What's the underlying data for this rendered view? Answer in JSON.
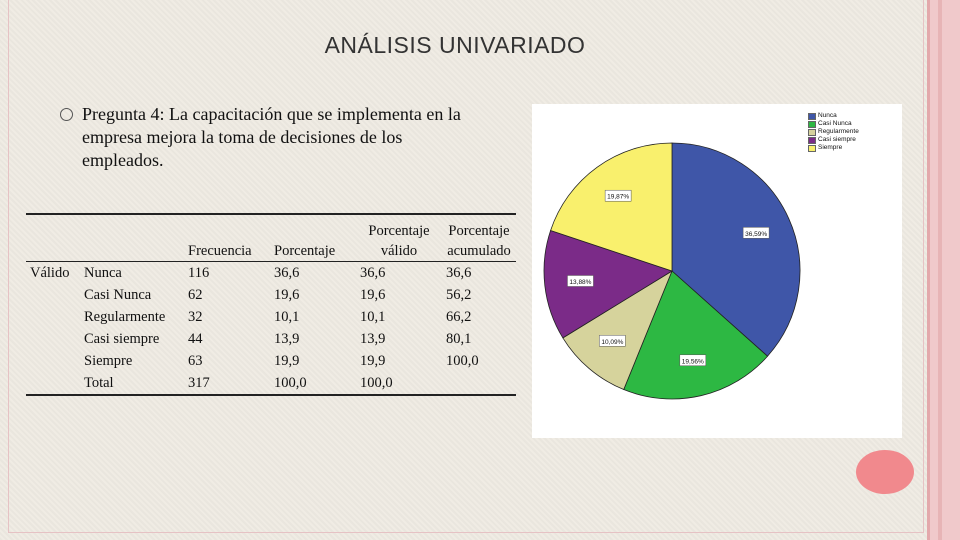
{
  "slide": {
    "title": "ANÁLISIS UNIVARIADO",
    "question": "Pregunta 4: La capacitación que se implementa en la empresa mejora la toma de decisiones de los empleados."
  },
  "table": {
    "headers": [
      "",
      "",
      "Frecuencia",
      "Porcentaje",
      "Porcentaje válido",
      "Porcentaje acumulado"
    ],
    "group_label": "Válido",
    "rows": [
      {
        "label": "Nunca",
        "frecuencia": "116",
        "porcentaje": "36,6",
        "valido": "36,6",
        "acumulado": "36,6"
      },
      {
        "label": "Casi Nunca",
        "frecuencia": "62",
        "porcentaje": "19,6",
        "valido": "19,6",
        "acumulado": "56,2"
      },
      {
        "label": "Regularmente",
        "frecuencia": "32",
        "porcentaje": "10,1",
        "valido": "10,1",
        "acumulado": "66,2"
      },
      {
        "label": "Casi siempre",
        "frecuencia": "44",
        "porcentaje": "13,9",
        "valido": "13,9",
        "acumulado": "80,1"
      },
      {
        "label": "Siempre",
        "frecuencia": "63",
        "porcentaje": "19,9",
        "valido": "19,9",
        "acumulado": "100,0"
      },
      {
        "label": "Total",
        "frecuencia": "317",
        "porcentaje": "100,0",
        "valido": "100,0",
        "acumulado": ""
      }
    ]
  },
  "chart_data": {
    "type": "pie",
    "title": "",
    "categories": [
      "Nunca",
      "Casi Nunca",
      "Regularmente",
      "Casi siempre",
      "Siempre"
    ],
    "values": [
      36.59,
      19.56,
      10.09,
      13.88,
      19.87
    ],
    "labels": [
      "36,59%",
      "19,56%",
      "10,09%",
      "13,88%",
      "19,87%"
    ],
    "colors": [
      "#3f56a8",
      "#2db843",
      "#d6d39c",
      "#7b2b88",
      "#f9f06d"
    ],
    "legend_position": "top-right",
    "start_angle_deg": 0,
    "direction": "clockwise"
  },
  "theme": {
    "accent_pink": "#f1898d"
  }
}
